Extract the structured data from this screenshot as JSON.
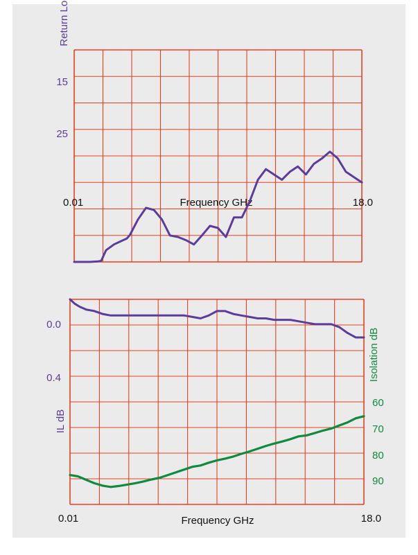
{
  "colors": {
    "grid": "#e8401c",
    "return_loss": "#5a3d9a",
    "insertion_loss": "#5a3d9a",
    "isolation": "#0f8a3e",
    "text": "#111111",
    "background": "#ebebeb"
  },
  "chart_data": [
    {
      "type": "line",
      "title": "",
      "xlabel": "Frequency GHz",
      "ylabel": "Return Los",
      "x_tick_labels": [
        "0.01",
        "18.0"
      ],
      "y_tick_labels": [
        "15",
        "25"
      ],
      "xlim": [
        0.01,
        18.0
      ],
      "ylim": [
        10,
        50
      ],
      "grid": true,
      "series": [
        {
          "name": "",
          "x": [
            0.01,
            0.5,
            1.0,
            1.5,
            1.7,
            2.0,
            2.5,
            3.0,
            3.3,
            3.5,
            4.0,
            4.5,
            5.0,
            5.5,
            6.0,
            6.5,
            7.0,
            7.5,
            8.0,
            8.5,
            9.0,
            9.5,
            10.0,
            10.5,
            11.0,
            11.5,
            12.0,
            12.5,
            13.0,
            13.5,
            14.0,
            14.5,
            15.0,
            15.5,
            16.0,
            16.5,
            17.0,
            17.5,
            18.0
          ],
          "y": [
            50.0,
            50.0,
            50.0,
            49.9,
            49.8,
            47.8,
            46.7,
            46.0,
            45.6,
            44.9,
            42.0,
            39.8,
            40.2,
            42.0,
            45.0,
            45.3,
            45.9,
            46.7,
            45.0,
            43.2,
            43.6,
            45.3,
            41.6,
            41.6,
            38.5,
            34.5,
            32.5,
            33.5,
            34.5,
            33.0,
            32.0,
            33.5,
            31.5,
            30.5,
            29.2,
            30.5,
            33.0,
            34.0,
            35.0
          ]
        }
      ]
    },
    {
      "type": "line",
      "title": "",
      "xlabel": "Frequency GHz",
      "ylabel": "IL dB",
      "y2label": "Isolation dB",
      "x_tick_labels": [
        "0.01",
        "18.0"
      ],
      "y_tick_labels": [
        "0.0",
        "0.4"
      ],
      "y2_tick_labels": [
        "60",
        "70",
        "80",
        "90"
      ],
      "xlim": [
        0.01,
        18.0
      ],
      "ylim": [
        0.0,
        1.4
      ],
      "y2lim": [
        40,
        100
      ],
      "grid": true,
      "series": [
        {
          "name": "IL dB",
          "axis": "left",
          "x": [
            0.01,
            0.3,
            0.6,
            1.0,
            1.5,
            2.0,
            2.5,
            3.0,
            3.5,
            4.0,
            4.5,
            5.0,
            5.5,
            6.0,
            6.5,
            7.0,
            7.5,
            8.0,
            8.5,
            9.0,
            9.5,
            10.0,
            10.5,
            11.0,
            11.5,
            12.0,
            12.5,
            13.0,
            13.5,
            14.0,
            14.5,
            15.0,
            15.5,
            16.0,
            16.5,
            17.0,
            17.5,
            18.0
          ],
          "y": [
            0.0,
            0.03,
            0.05,
            0.07,
            0.08,
            0.1,
            0.11,
            0.11,
            0.11,
            0.11,
            0.11,
            0.11,
            0.11,
            0.11,
            0.11,
            0.11,
            0.12,
            0.13,
            0.11,
            0.08,
            0.08,
            0.1,
            0.11,
            0.12,
            0.13,
            0.13,
            0.14,
            0.14,
            0.14,
            0.15,
            0.16,
            0.17,
            0.17,
            0.17,
            0.19,
            0.23,
            0.26,
            0.26
          ]
        },
        {
          "name": "Isolation dB",
          "axis": "right",
          "x": [
            0.01,
            0.5,
            1.0,
            1.5,
            2.0,
            2.5,
            3.0,
            3.5,
            4.0,
            4.5,
            5.0,
            5.5,
            6.0,
            6.5,
            7.0,
            7.5,
            8.0,
            8.5,
            9.0,
            9.5,
            10.0,
            10.5,
            11.0,
            11.5,
            12.0,
            12.5,
            13.0,
            13.5,
            14.0,
            14.5,
            15.0,
            15.5,
            16.0,
            16.5,
            17.0,
            17.5,
            18.0
          ],
          "y": [
            91.4,
            91.8,
            92.8,
            93.8,
            94.5,
            94.9,
            94.6,
            94.2,
            93.8,
            93.3,
            92.7,
            92.2,
            91.4,
            90.6,
            89.8,
            89.0,
            88.6,
            87.8,
            87.1,
            86.6,
            86.0,
            85.2,
            84.5,
            83.7,
            82.9,
            82.2,
            81.6,
            80.9,
            80.1,
            79.8,
            79.1,
            78.4,
            77.8,
            76.9,
            76.0,
            74.8,
            74.2
          ]
        }
      ]
    }
  ]
}
